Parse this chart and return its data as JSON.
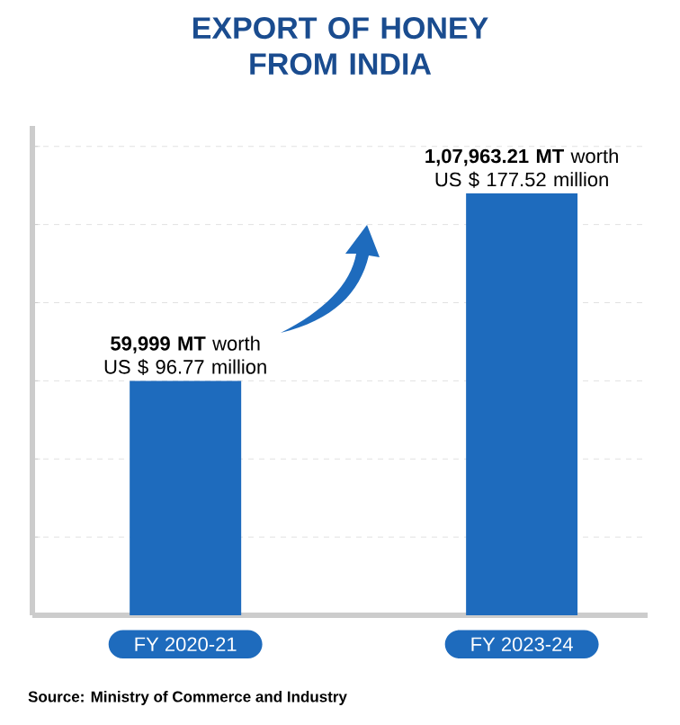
{
  "chart_data": {
    "type": "bar",
    "title": "EXPORT OF HONEY FROM INDIA",
    "categories": [
      "FY 2020-21",
      "FY 2023-24"
    ],
    "values": [
      59999,
      107963.21
    ],
    "value_labels": [
      "**59,999 MT** worth US $ 96.77 million",
      "**1,07,963.21 MT** worth US $ 177.52 million"
    ],
    "color": "#1e6bbd",
    "grid": "y",
    "tick_labels": "x",
    "annotations": [
      "Source: Ministry of Commerce and Industry"
    ]
  }
}
